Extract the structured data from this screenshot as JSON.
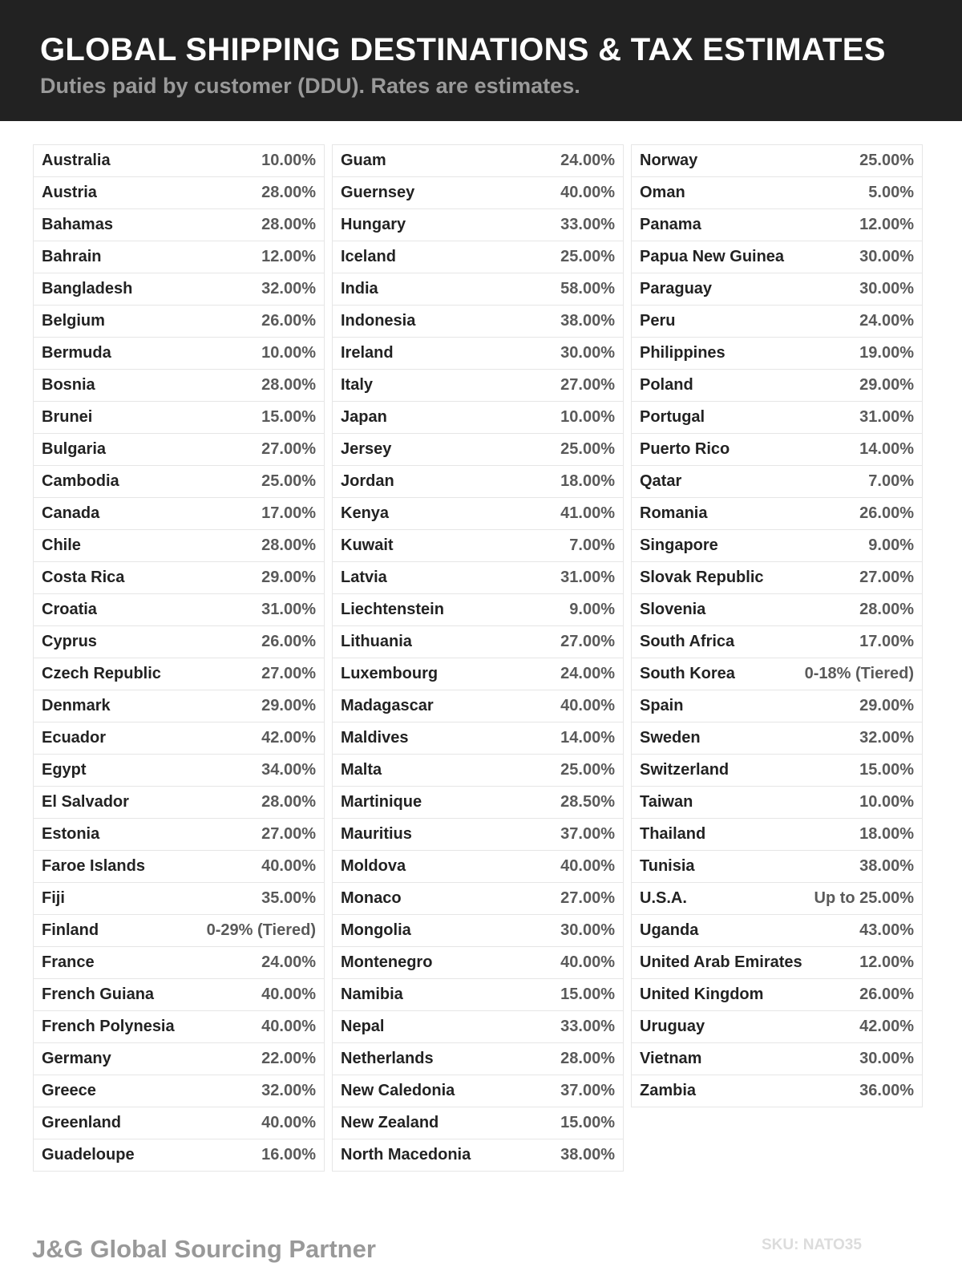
{
  "header": {
    "title": "GLOBAL SHIPPING DESTINATIONS & TAX ESTIMATES",
    "subtitle": "Duties paid by customer (DDU). Rates are estimates."
  },
  "columns": [
    [
      {
        "country": "Australia",
        "rate": "10.00%"
      },
      {
        "country": "Austria",
        "rate": "28.00%"
      },
      {
        "country": "Bahamas",
        "rate": "28.00%"
      },
      {
        "country": "Bahrain",
        "rate": "12.00%"
      },
      {
        "country": "Bangladesh",
        "rate": "32.00%"
      },
      {
        "country": "Belgium",
        "rate": "26.00%"
      },
      {
        "country": "Bermuda",
        "rate": "10.00%"
      },
      {
        "country": "Bosnia",
        "rate": "28.00%"
      },
      {
        "country": "Brunei",
        "rate": "15.00%"
      },
      {
        "country": "Bulgaria",
        "rate": "27.00%"
      },
      {
        "country": "Cambodia",
        "rate": "25.00%"
      },
      {
        "country": "Canada",
        "rate": "17.00%"
      },
      {
        "country": "Chile",
        "rate": "28.00%"
      },
      {
        "country": "Costa Rica",
        "rate": "29.00%"
      },
      {
        "country": "Croatia",
        "rate": "31.00%"
      },
      {
        "country": "Cyprus",
        "rate": "26.00%"
      },
      {
        "country": "Czech Republic",
        "rate": "27.00%"
      },
      {
        "country": "Denmark",
        "rate": "29.00%"
      },
      {
        "country": "Ecuador",
        "rate": "42.00%"
      },
      {
        "country": "Egypt",
        "rate": "34.00%"
      },
      {
        "country": "El Salvador",
        "rate": "28.00%"
      },
      {
        "country": "Estonia",
        "rate": "27.00%"
      },
      {
        "country": "Faroe Islands",
        "rate": "40.00%"
      },
      {
        "country": "Fiji",
        "rate": "35.00%"
      },
      {
        "country": "Finland",
        "rate": "0-29% (Tiered)"
      },
      {
        "country": "France",
        "rate": "24.00%"
      },
      {
        "country": "French Guiana",
        "rate": "40.00%"
      },
      {
        "country": "French Polynesia",
        "rate": "40.00%"
      },
      {
        "country": "Germany",
        "rate": "22.00%"
      },
      {
        "country": "Greece",
        "rate": "32.00%"
      },
      {
        "country": "Greenland",
        "rate": "40.00%"
      },
      {
        "country": "Guadeloupe",
        "rate": "16.00%"
      }
    ],
    [
      {
        "country": "Guam",
        "rate": "24.00%"
      },
      {
        "country": "Guernsey",
        "rate": "40.00%"
      },
      {
        "country": "Hungary",
        "rate": "33.00%"
      },
      {
        "country": "Iceland",
        "rate": "25.00%"
      },
      {
        "country": "India",
        "rate": "58.00%"
      },
      {
        "country": "Indonesia",
        "rate": "38.00%"
      },
      {
        "country": "Ireland",
        "rate": "30.00%"
      },
      {
        "country": "Italy",
        "rate": "27.00%"
      },
      {
        "country": "Japan",
        "rate": "10.00%"
      },
      {
        "country": "Jersey",
        "rate": "25.00%"
      },
      {
        "country": "Jordan",
        "rate": "18.00%"
      },
      {
        "country": "Kenya",
        "rate": "41.00%"
      },
      {
        "country": "Kuwait",
        "rate": "7.00%"
      },
      {
        "country": "Latvia",
        "rate": "31.00%"
      },
      {
        "country": "Liechtenstein",
        "rate": "9.00%"
      },
      {
        "country": "Lithuania",
        "rate": "27.00%"
      },
      {
        "country": "Luxembourg",
        "rate": "24.00%"
      },
      {
        "country": "Madagascar",
        "rate": "40.00%"
      },
      {
        "country": "Maldives",
        "rate": "14.00%"
      },
      {
        "country": "Malta",
        "rate": "25.00%"
      },
      {
        "country": "Martinique",
        "rate": "28.50%"
      },
      {
        "country": "Mauritius",
        "rate": "37.00%"
      },
      {
        "country": "Moldova",
        "rate": "40.00%"
      },
      {
        "country": "Monaco",
        "rate": "27.00%"
      },
      {
        "country": "Mongolia",
        "rate": "30.00%"
      },
      {
        "country": "Montenegro",
        "rate": "40.00%"
      },
      {
        "country": "Namibia",
        "rate": "15.00%"
      },
      {
        "country": "Nepal",
        "rate": "33.00%"
      },
      {
        "country": "Netherlands",
        "rate": "28.00%"
      },
      {
        "country": "New Caledonia",
        "rate": "37.00%"
      },
      {
        "country": "New Zealand",
        "rate": "15.00%"
      },
      {
        "country": "North Macedonia",
        "rate": "38.00%"
      }
    ],
    [
      {
        "country": "Norway",
        "rate": "25.00%"
      },
      {
        "country": "Oman",
        "rate": "5.00%"
      },
      {
        "country": "Panama",
        "rate": "12.00%"
      },
      {
        "country": "Papua New Guinea",
        "rate": "30.00%"
      },
      {
        "country": "Paraguay",
        "rate": "30.00%"
      },
      {
        "country": "Peru",
        "rate": "24.00%"
      },
      {
        "country": "Philippines",
        "rate": "19.00%"
      },
      {
        "country": "Poland",
        "rate": "29.00%"
      },
      {
        "country": "Portugal",
        "rate": "31.00%"
      },
      {
        "country": "Puerto Rico",
        "rate": "14.00%"
      },
      {
        "country": "Qatar",
        "rate": "7.00%"
      },
      {
        "country": "Romania",
        "rate": "26.00%"
      },
      {
        "country": "Singapore",
        "rate": "9.00%"
      },
      {
        "country": "Slovak Republic",
        "rate": "27.00%"
      },
      {
        "country": "Slovenia",
        "rate": "28.00%"
      },
      {
        "country": "South Africa",
        "rate": "17.00%"
      },
      {
        "country": "South Korea",
        "rate": "0-18% (Tiered)"
      },
      {
        "country": "Spain",
        "rate": "29.00%"
      },
      {
        "country": "Sweden",
        "rate": "32.00%"
      },
      {
        "country": "Switzerland",
        "rate": "15.00%"
      },
      {
        "country": "Taiwan",
        "rate": "10.00%"
      },
      {
        "country": "Thailand",
        "rate": "18.00%"
      },
      {
        "country": "Tunisia",
        "rate": "38.00%"
      },
      {
        "country": "U.S.A.",
        "rate": "Up to 25.00%"
      },
      {
        "country": "Uganda",
        "rate": "43.00%"
      },
      {
        "country": "United Arab Emirates",
        "rate": "12.00%"
      },
      {
        "country": "United Kingdom",
        "rate": "26.00%"
      },
      {
        "country": "Uruguay",
        "rate": "42.00%"
      },
      {
        "country": "Vietnam",
        "rate": "30.00%"
      },
      {
        "country": "Zambia",
        "rate": "36.00%"
      }
    ]
  ],
  "footer": {
    "brand": "J&G Global Sourcing Partner",
    "sku": "SKU: NATO35"
  },
  "colors": {
    "header_bg": "#222222",
    "title": "#ffffff",
    "subtitle": "#9a9a9a",
    "rate": "#5a5a5a"
  }
}
